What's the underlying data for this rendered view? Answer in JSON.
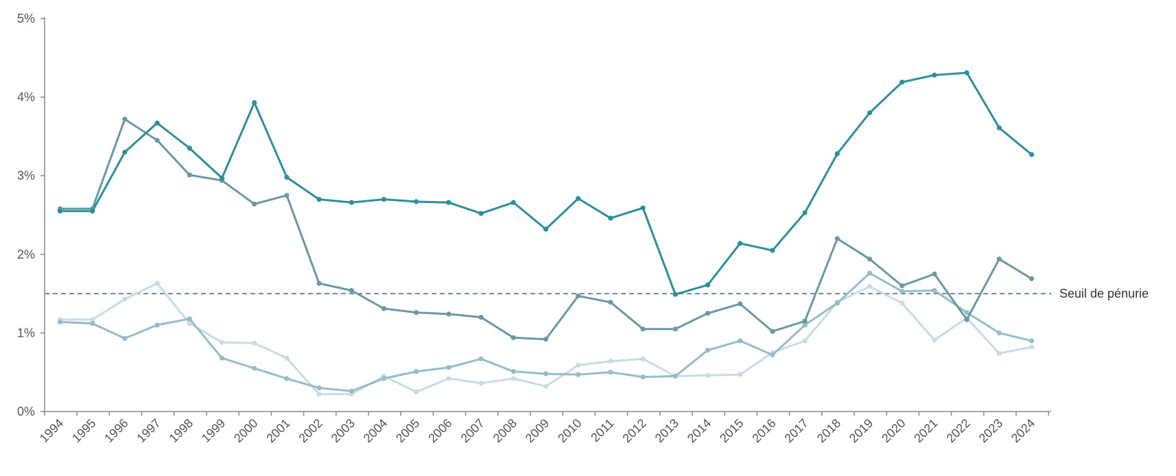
{
  "chart_data": {
    "type": "line",
    "title": "",
    "xlabel": "",
    "ylabel": "",
    "x": [
      "1994",
      "1995",
      "1996",
      "1997",
      "1998",
      "1999",
      "2000",
      "2001",
      "2002",
      "2003",
      "2004",
      "2005",
      "2006",
      "2007",
      "2008",
      "2009",
      "2010",
      "2011",
      "2012",
      "2013",
      "2014",
      "2015",
      "2016",
      "2017",
      "2018",
      "2019",
      "2020",
      "2021",
      "2022",
      "2023",
      "2024"
    ],
    "ylim": [
      0,
      5
    ],
    "y_ticks": [
      {
        "value": 0,
        "label": "0%"
      },
      {
        "value": 1,
        "label": "1%"
      },
      {
        "value": 2,
        "label": "2%"
      },
      {
        "value": 3,
        "label": "3%"
      },
      {
        "value": 4,
        "label": "4%"
      },
      {
        "value": 5,
        "label": "5%"
      }
    ],
    "grid": false,
    "legend": "none",
    "series": [
      {
        "color": "#2b8f9e",
        "values": [
          2.55,
          2.55,
          3.3,
          3.67,
          3.35,
          2.97,
          3.93,
          2.98,
          2.7,
          2.66,
          2.7,
          2.67,
          2.66,
          2.52,
          2.66,
          2.32,
          2.71,
          2.46,
          2.59,
          1.49,
          1.61,
          2.14,
          2.05,
          2.53,
          3.28,
          3.8,
          4.19,
          4.28,
          4.31,
          3.61,
          3.27
        ]
      },
      {
        "color": "#6a98a3",
        "values": [
          2.58,
          2.58,
          3.72,
          3.45,
          3.01,
          2.94,
          2.64,
          2.75,
          1.63,
          1.54,
          1.31,
          1.26,
          1.24,
          1.2,
          0.94,
          0.92,
          1.47,
          1.39,
          1.05,
          1.05,
          1.25,
          1.37,
          1.02,
          1.15,
          2.2,
          1.94,
          1.6,
          1.75,
          1.17,
          1.94,
          1.69
        ]
      },
      {
        "color": "#93bdc9",
        "values": [
          1.14,
          1.12,
          0.93,
          1.1,
          1.18,
          0.68,
          0.55,
          0.42,
          0.3,
          0.26,
          0.42,
          0.51,
          0.56,
          0.67,
          0.51,
          0.48,
          0.47,
          0.5,
          0.44,
          0.45,
          0.78,
          0.9,
          0.72,
          1.1,
          1.38,
          1.76,
          1.53,
          1.54,
          1.26,
          1.0,
          0.9
        ]
      },
      {
        "color": "#c7dde4",
        "values": [
          1.17,
          1.17,
          1.43,
          1.63,
          1.12,
          0.88,
          0.87,
          0.68,
          0.22,
          0.22,
          0.45,
          0.25,
          0.42,
          0.36,
          0.42,
          0.32,
          0.59,
          0.64,
          0.67,
          0.45,
          0.46,
          0.47,
          0.75,
          0.9,
          1.39,
          1.59,
          1.38,
          0.91,
          1.19,
          0.74,
          0.82
        ]
      }
    ],
    "threshold": {
      "value": 1.5,
      "label": "Seuil de pénurie",
      "color": "#5e8fa3"
    },
    "axis_color": "#888888"
  }
}
